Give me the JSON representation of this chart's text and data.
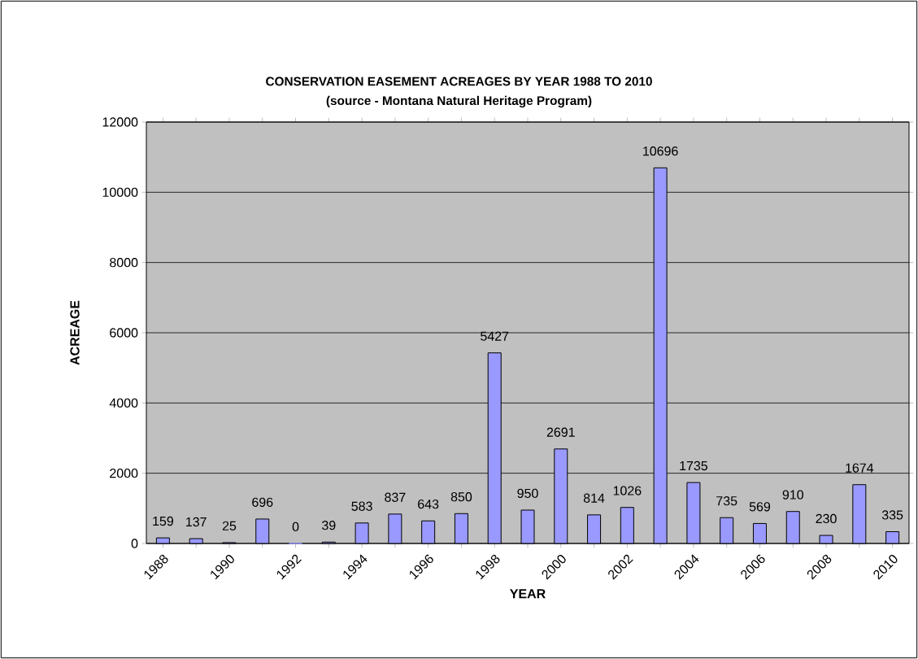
{
  "chart_data": {
    "type": "bar",
    "title": "CONSERVATION EASEMENT ACREAGES BY YEAR 1988 TO 2010",
    "subtitle": "(source - Montana Natural Heritage Program)",
    "xlabel": "YEAR",
    "ylabel": "ACREAGE",
    "categories": [
      "1988",
      null,
      "1990",
      null,
      "1992",
      null,
      "1994",
      null,
      "1996",
      null,
      "1998",
      null,
      "2000",
      null,
      "2002",
      null,
      "2004",
      null,
      "2006",
      null,
      "2008",
      null,
      "2010"
    ],
    "values": [
      159,
      137,
      25,
      696,
      0,
      39,
      583,
      837,
      643,
      850,
      5427,
      950,
      2691,
      814,
      1026,
      10696,
      1735,
      735,
      569,
      910,
      230,
      1674,
      335
    ],
    "color": "#9999ff",
    "ylim": [
      0,
      12000
    ],
    "yticks": [
      0,
      2000,
      4000,
      6000,
      8000,
      10000,
      12000
    ],
    "grid": "y",
    "data_labels": true
  }
}
